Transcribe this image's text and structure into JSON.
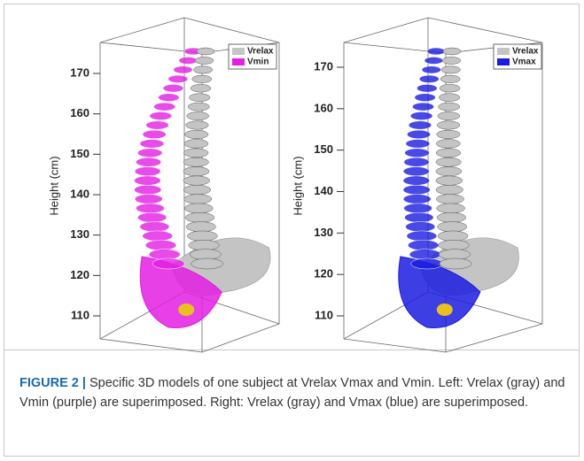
{
  "figure": {
    "panels": [
      {
        "ylabel": "Height (cm)",
        "ylim": [
          110,
          170
        ],
        "yticks": [
          110,
          120,
          130,
          140,
          150,
          160,
          170
        ],
        "legend": [
          {
            "name": "Vrelax",
            "color": "#c4c4c4"
          },
          {
            "name": "Vmin",
            "color": "#e21fe2"
          }
        ]
      },
      {
        "ylabel": "Height (cm)",
        "ylim": [
          110,
          170
        ],
        "yticks": [
          110,
          120,
          130,
          140,
          150,
          160,
          170
        ],
        "legend": [
          {
            "name": "Vrelax",
            "color": "#c4c4c4"
          },
          {
            "name": "Vmax",
            "color": "#1c1ce0"
          }
        ]
      }
    ],
    "caption": {
      "label": "FIGURE 2 |",
      "text": "Specific 3D models of one subject at Vrelax Vmax and Vmin. Left: Vrelax (gray) and Vmin (purple) are superimposed. Right: Vrelax (gray) and Vmax (blue) are superimposed."
    }
  }
}
